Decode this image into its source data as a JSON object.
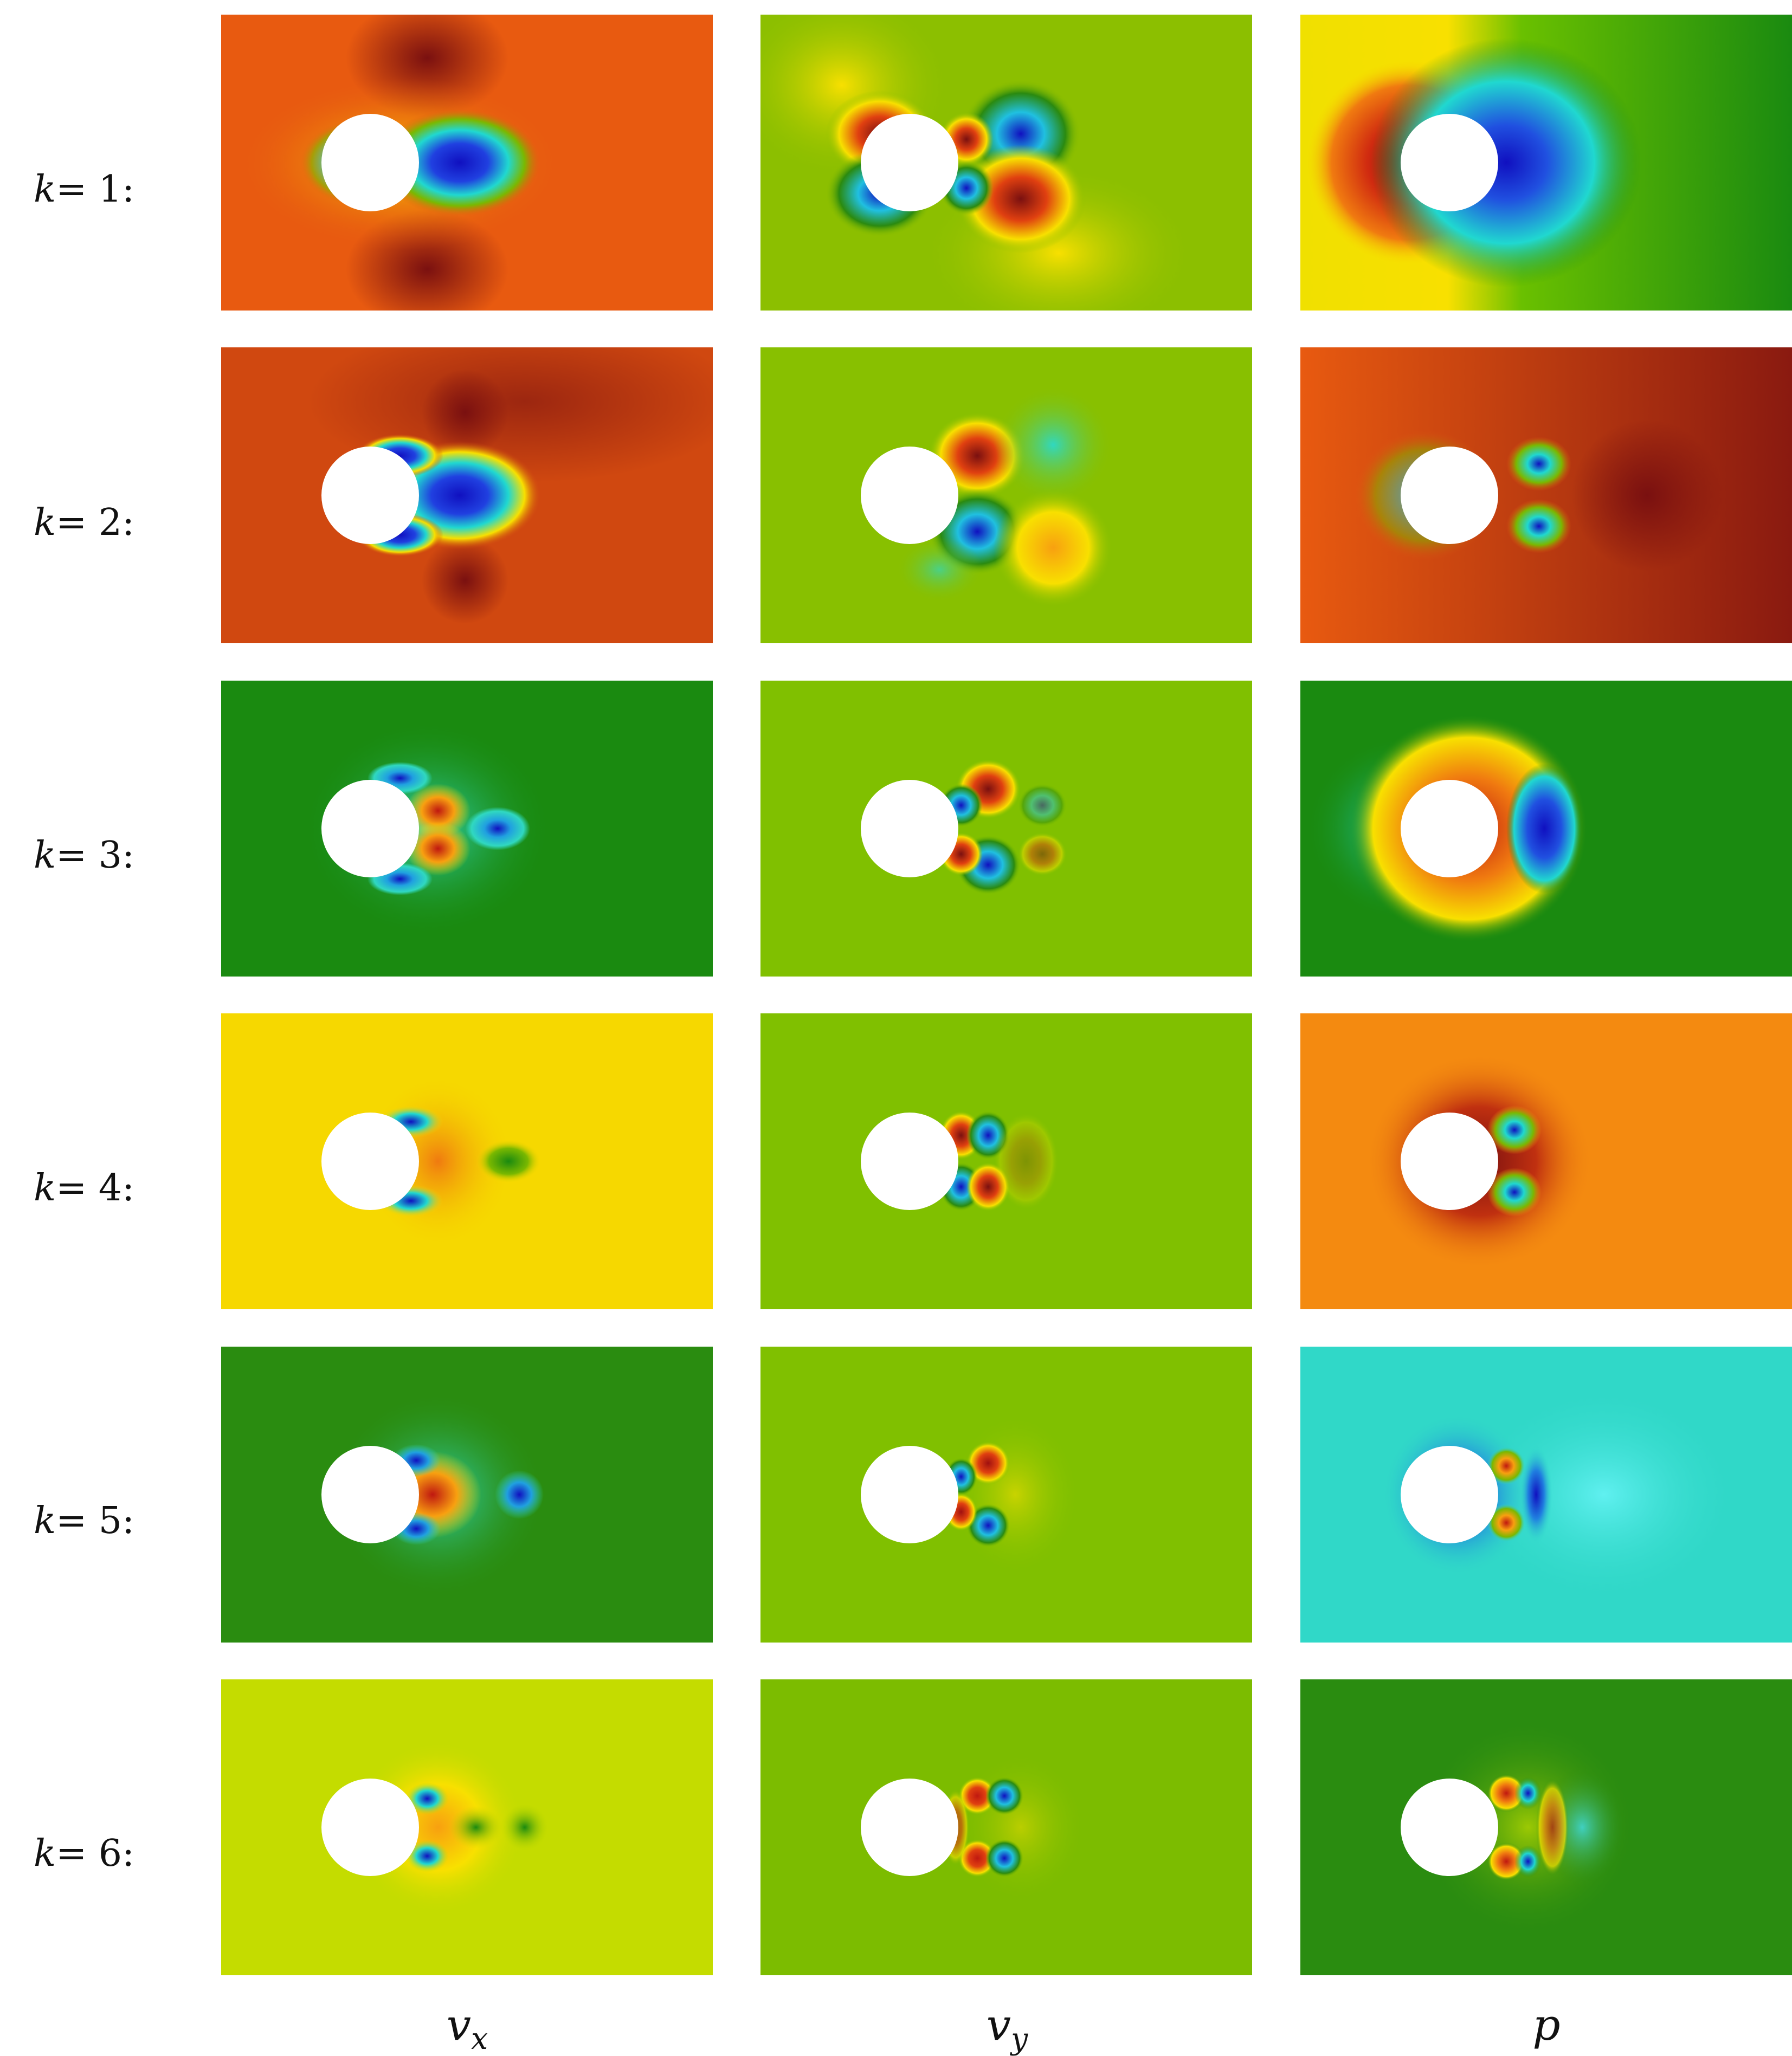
{
  "rows": [
    {
      "k": "k",
      "eq": " = 1:"
    },
    {
      "k": "k",
      "eq": " = 2:"
    },
    {
      "k": "k",
      "eq": " = 3:"
    },
    {
      "k": "k",
      "eq": " = 4:"
    },
    {
      "k": "k",
      "eq": " = 5:"
    },
    {
      "k": "k",
      "eq": " = 6:"
    }
  ],
  "columns": [
    {
      "main": "v",
      "sub": "x"
    },
    {
      "main": "v",
      "sub": "y"
    },
    {
      "main": "p",
      "sub": ""
    }
  ],
  "palette": {
    "darkred": "#7a1010",
    "red": "#c0301a",
    "orange": "#f07a10",
    "yellow": "#f8e000",
    "yellowgreen": "#b8d800",
    "green": "#7ab800",
    "darkgreen": "#2a8a10",
    "cyan": "#20d8d0",
    "blue": "#1010c0",
    "obstacle": "#ffffff"
  },
  "panels": [
    {
      "bg": "#e85a10"
    },
    {
      "bg": "#8cbf00"
    },
    {
      "bg": "#f0e000"
    },
    {
      "bg": "#d04810"
    },
    {
      "bg": "#88c000"
    },
    {
      "bg": "#e05a10"
    },
    {
      "bg": "#1a8a10"
    },
    {
      "bg": "#80c000"
    },
    {
      "bg": "#1a8a10"
    },
    {
      "bg": "#f6d800"
    },
    {
      "bg": "#80c000"
    },
    {
      "bg": "#f48a10"
    },
    {
      "bg": "#2a8c10"
    },
    {
      "bg": "#80bc00"
    },
    {
      "bg": "#30d8c8"
    },
    {
      "bg": "#c4dc00"
    },
    {
      "bg": "#7cbc00"
    },
    {
      "bg": "#2a8c10"
    }
  ]
}
